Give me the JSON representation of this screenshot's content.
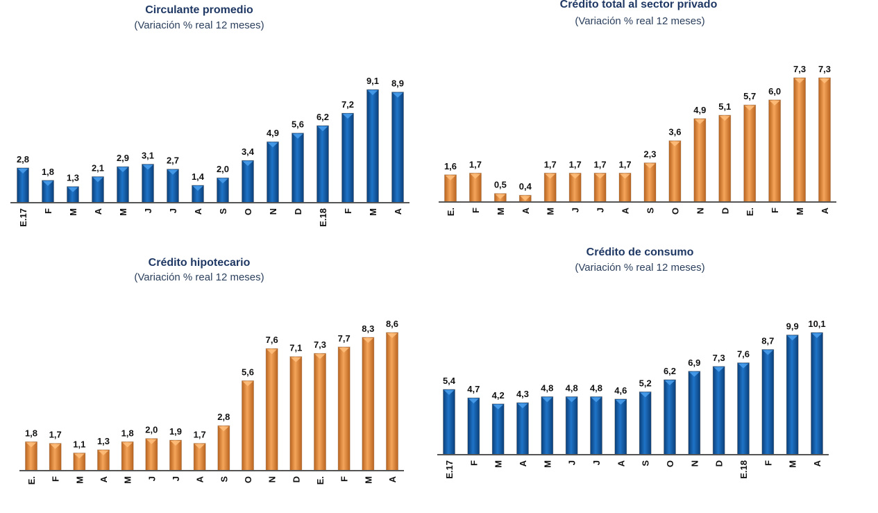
{
  "chart_data": [
    {
      "type": "bar",
      "title": "Circulante promedio",
      "subtitle": "(Variación % real 12 meses)",
      "categories": [
        "E.17",
        "F",
        "M",
        "A",
        "M",
        "J",
        "J",
        "A",
        "S",
        "O",
        "N",
        "D",
        "E.18",
        "F",
        "M",
        "A"
      ],
      "values": [
        2.8,
        1.8,
        1.3,
        2.1,
        2.9,
        3.1,
        2.7,
        1.4,
        2.0,
        3.4,
        4.9,
        5.6,
        6.2,
        7.2,
        9.1,
        8.9
      ],
      "data_labels": [
        "2,8",
        "1,8",
        "1,3",
        "2,1",
        "2,9",
        "3,1",
        "2,7",
        "1,4",
        "2,0",
        "3,4",
        "4,9",
        "5,6",
        "6,2",
        "7,2",
        "9,1",
        "8,9"
      ],
      "color": "#1565b8",
      "ylim": [
        0,
        9.1
      ],
      "grid": false
    },
    {
      "type": "bar",
      "title": "Crédito total al sector privado",
      "subtitle": "(Variación % real 12 meses)",
      "categories": [
        "E.",
        "F",
        "M",
        "A",
        "M",
        "J",
        "J",
        "A",
        "S",
        "O",
        "N",
        "D",
        "E.",
        "F",
        "M",
        "A"
      ],
      "values": [
        1.6,
        1.7,
        0.5,
        0.4,
        1.7,
        1.7,
        1.7,
        1.7,
        2.3,
        3.6,
        4.9,
        5.1,
        5.7,
        6.0,
        7.3,
        7.3
      ],
      "data_labels": [
        "1,6",
        "1,7",
        "0,5",
        "0,4",
        "1,7",
        "1,7",
        "1,7",
        "1,7",
        "2,3",
        "3,6",
        "4,9",
        "5,1",
        "5,7",
        "6,0",
        "7,3",
        "7,3"
      ],
      "color": "#e8913f",
      "ylim": [
        0,
        7.3
      ],
      "grid": false
    },
    {
      "type": "bar",
      "title": "Crédito hipotecario",
      "subtitle": "(Variación % real 12 meses)",
      "categories": [
        "E.",
        "F",
        "M",
        "A",
        "M",
        "J",
        "J",
        "A",
        "S",
        "O",
        "N",
        "D",
        "E.",
        "F",
        "M",
        "A"
      ],
      "values": [
        1.8,
        1.7,
        1.1,
        1.3,
        1.8,
        2.0,
        1.9,
        1.7,
        2.8,
        5.6,
        7.6,
        7.1,
        7.3,
        7.7,
        8.3,
        8.6
      ],
      "data_labels": [
        "1,8",
        "1,7",
        "1,1",
        "1,3",
        "1,8",
        "2,0",
        "1,9",
        "1,7",
        "2,8",
        "5,6",
        "7,6",
        "7,1",
        "7,3",
        "7,7",
        "8,3",
        "8,6"
      ],
      "color": "#e8913f",
      "ylim": [
        0,
        8.6
      ],
      "grid": false
    },
    {
      "type": "bar",
      "title": "Crédito de consumo",
      "subtitle": "(Variación % real 12 meses)",
      "categories": [
        "E.17",
        "F",
        "M",
        "A",
        "M",
        "J",
        "J",
        "A",
        "S",
        "O",
        "N",
        "D",
        "E.18",
        "F",
        "M",
        "A"
      ],
      "values": [
        5.4,
        4.7,
        4.2,
        4.3,
        4.8,
        4.8,
        4.8,
        4.6,
        5.2,
        6.2,
        6.9,
        7.3,
        7.6,
        8.7,
        9.9,
        10.1
      ],
      "data_labels": [
        "5,4",
        "4,7",
        "4,2",
        "4,3",
        "4,8",
        "4,8",
        "4,8",
        "4,6",
        "5,2",
        "6,2",
        "6,9",
        "7,3",
        "7,6",
        "8,7",
        "9,9",
        "10,1"
      ],
      "color": "#1565b8",
      "ylim": [
        0,
        10.1
      ],
      "grid": false
    }
  ]
}
